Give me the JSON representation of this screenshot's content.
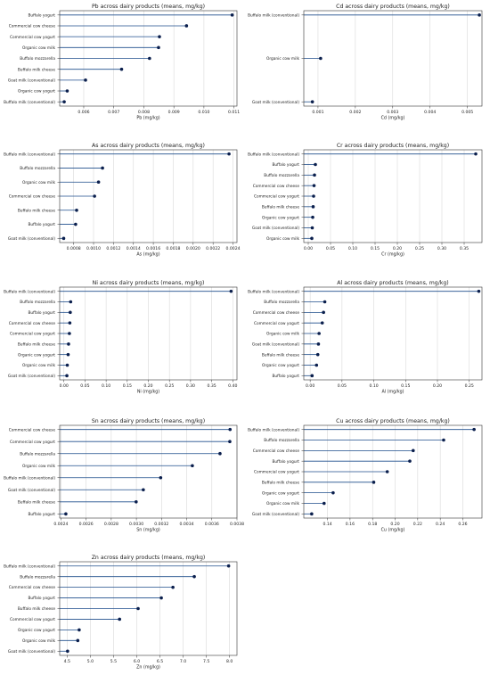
{
  "chart_data": [
    {
      "type": "lollipop",
      "title": "Pb across dairy products (means, mg/kg)",
      "xlabel": "Pb (mg/kg)",
      "xlim": [
        0.0052,
        0.0111
      ],
      "xticks": [
        0.006,
        0.007,
        0.008,
        0.009,
        0.01,
        0.011
      ],
      "xtick_labels": [
        "0.006",
        "0.007",
        "0.008",
        "0.009",
        "0.010",
        "0.011"
      ],
      "grid": true,
      "categories": [
        "Buffalo yogurt",
        "Commercial cow cheese",
        "Commercial cow yogurt",
        "Organic cow milk",
        "Buffalo mozzarella",
        "Buffalo milk cheese",
        "Goat milk (conventional)",
        "Organic cow yogurt",
        "Buffalo milk (conventional)"
      ],
      "values": [
        0.01094,
        0.00942,
        0.00852,
        0.00849,
        0.00819,
        0.00726,
        0.00606,
        0.00545,
        0.00535
      ]
    },
    {
      "type": "lollipop",
      "title": "Cd across dairy products (means, mg/kg)",
      "xlabel": "Cd (mg/kg)",
      "xlim": [
        0.00062,
        0.00539
      ],
      "xticks": [
        0.001,
        0.002,
        0.003,
        0.004,
        0.005
      ],
      "xtick_labels": [
        "0.001",
        "0.002",
        "0.003",
        "0.004",
        "0.005"
      ],
      "grid": true,
      "categories": [
        "Buffalo milk (conventional)",
        "Organic cow milk",
        "Goat milk (conventional)"
      ],
      "values": [
        0.00532,
        0.00107,
        0.00085
      ]
    },
    {
      "type": "lollipop",
      "title": "As across dairy products (means, mg/kg)",
      "xlabel": "As (mg/kg)",
      "xlim": [
        0.00066,
        0.00244
      ],
      "xticks": [
        0.0008,
        0.001,
        0.0012,
        0.0014,
        0.0016,
        0.0018,
        0.002,
        0.0022,
        0.0024
      ],
      "xtick_labels": [
        "0.0008",
        "0.0010",
        "0.0012",
        "0.0014",
        "0.0016",
        "0.0018",
        "0.0020",
        "0.0022",
        "0.0024"
      ],
      "grid": true,
      "categories": [
        "Buffalo milk (conventional)",
        "Buffalo mozzarella",
        "Organic cow milk",
        "Commercial cow cheese",
        "Buffalo milk cheese",
        "Buffalo yogurt",
        "Goat milk (conventional)"
      ],
      "values": [
        0.00236,
        0.00109,
        0.00105,
        0.00101,
        0.00083,
        0.00082,
        0.0007
      ]
    },
    {
      "type": "lollipop",
      "title": "Cr across dairy products (means, mg/kg)",
      "xlabel": "Cr (mg/kg)",
      "xlim": [
        -0.01,
        0.39
      ],
      "xticks": [
        0.0,
        0.05,
        0.1,
        0.15,
        0.2,
        0.25,
        0.3,
        0.35
      ],
      "xtick_labels": [
        "0.00",
        "0.05",
        "0.10",
        "0.15",
        "0.20",
        "0.25",
        "0.30",
        "0.35"
      ],
      "grid": true,
      "categories": [
        "Buffalo milk (conventional)",
        "Buffalo yogurt",
        "Buffalo mozzarella",
        "Commercial cow cheese",
        "Commercial cow yogurt",
        "Buffalo milk cheese",
        "Organic cow yogurt",
        "Goat milk (conventional)",
        "Organic cow milk"
      ],
      "values": [
        0.376,
        0.016,
        0.014,
        0.013,
        0.012,
        0.011,
        0.01,
        0.009,
        0.008
      ]
    },
    {
      "type": "lollipop",
      "title": "Ni across dairy products (means, mg/kg)",
      "xlabel": "Ni (mg/kg)",
      "xlim": [
        -0.01,
        0.41
      ],
      "xticks": [
        0.0,
        0.05,
        0.1,
        0.15,
        0.2,
        0.25,
        0.3,
        0.35,
        0.4
      ],
      "xtick_labels": [
        "0.00",
        "0.05",
        "0.10",
        "0.15",
        "0.20",
        "0.25",
        "0.30",
        "0.35",
        "0.40"
      ],
      "grid": true,
      "categories": [
        "Buffalo milk (conventional)",
        "Buffalo mozzarella",
        "Buffalo yogurt",
        "Commercial cow cheese",
        "Commercial cow yogurt",
        "Buffalo milk cheese",
        "Organic cow yogurt",
        "Organic cow milk",
        "Goat milk (conventional)"
      ],
      "values": [
        0.396,
        0.016,
        0.015,
        0.014,
        0.013,
        0.011,
        0.01,
        0.008,
        0.007
      ]
    },
    {
      "type": "lollipop",
      "title": "Al across dairy products (means, mg/kg)",
      "xlabel": "Al (mg/kg)",
      "xlim": [
        -0.01,
        0.27
      ],
      "xticks": [
        0.0,
        0.05,
        0.1,
        0.15,
        0.2,
        0.25
      ],
      "xtick_labels": [
        "0.00",
        "0.05",
        "0.10",
        "0.15",
        "0.20",
        "0.25"
      ],
      "grid": true,
      "categories": [
        "Buffalo milk (conventional)",
        "Buffalo mozzarella",
        "Commercial cow cheese",
        "Commercial cow yogurt",
        "Organic cow milk",
        "Goat milk (conventional)",
        "Buffalo milk cheese",
        "Organic cow yogurt",
        "Buffalo yogurt"
      ],
      "values": [
        0.265,
        0.023,
        0.021,
        0.019,
        0.014,
        0.013,
        0.012,
        0.01,
        0.003
      ]
    },
    {
      "type": "lollipop",
      "title": "Sn across dairy products (means, mg/kg)",
      "xlabel": "Sn (mg/kg)",
      "xlim": [
        0.00239,
        0.0038
      ],
      "xticks": [
        0.0024,
        0.0026,
        0.0028,
        0.003,
        0.0032,
        0.0034,
        0.0036,
        0.0038
      ],
      "xtick_labels": [
        "0.0024",
        "0.0026",
        "0.0028",
        "0.0030",
        "0.0032",
        "0.0034",
        "0.0036",
        "0.0038"
      ],
      "grid": true,
      "categories": [
        "Commercial cow cheese",
        "Commercial cow yogurt",
        "Buffalo mozzarella",
        "Organic cow milk",
        "Buffalo milk (conventional)",
        "Goat milk (conventional)",
        "Buffalo milk cheese",
        "Buffalo yogurt"
      ],
      "values": [
        0.003745,
        0.003743,
        0.003665,
        0.003445,
        0.003193,
        0.003055,
        0.002998,
        0.002439
      ]
    },
    {
      "type": "lollipop",
      "title": "Cu across dairy products (means, mg/kg)",
      "xlabel": "Cu (mg/kg)",
      "xlim": [
        0.119,
        0.277
      ],
      "xticks": [
        0.14,
        0.16,
        0.18,
        0.2,
        0.22,
        0.24,
        0.26
      ],
      "xtick_labels": [
        "0.14",
        "0.16",
        "0.18",
        "0.20",
        "0.22",
        "0.24",
        "0.26"
      ],
      "grid": true,
      "categories": [
        "Buffalo milk (conventional)",
        "Buffalo mozzarella",
        "Commercial cow cheese",
        "Buffalo yogurt",
        "Commercial cow yogurt",
        "Buffalo milk cheese",
        "Organic cow yogurt",
        "Organic cow milk",
        "Goat milk (conventional)"
      ],
      "values": [
        0.27,
        0.243,
        0.216,
        0.213,
        0.193,
        0.181,
        0.145,
        0.137,
        0.126
      ]
    },
    {
      "type": "lollipop",
      "title": "Zn across dairy products (means, mg/kg)",
      "xlabel": "Zn (mg/kg)",
      "xlim": [
        4.34,
        8.16
      ],
      "xticks": [
        4.5,
        5.0,
        5.5,
        6.0,
        6.5,
        7.0,
        7.5,
        8.0
      ],
      "xtick_labels": [
        "4.5",
        "5.0",
        "5.5",
        "6.0",
        "6.5",
        "7.0",
        "7.5",
        "8.0"
      ],
      "grid": true,
      "categories": [
        "Buffalo milk (conventional)",
        "Buffalo mozzarella",
        "Commercial cow cheese",
        "Buffalo yogurt",
        "Buffalo milk cheese",
        "Commercial cow yogurt",
        "Organic cow yogurt",
        "Organic cow milk",
        "Goat milk (conventional)"
      ],
      "values": [
        7.98,
        7.24,
        6.78,
        6.53,
        6.03,
        5.63,
        4.76,
        4.73,
        4.51
      ]
    }
  ],
  "colors": {
    "stem": "#1f4e8c",
    "marker": "#0b1f4d",
    "grid": "#d9d9d9",
    "axis": "#333333"
  }
}
